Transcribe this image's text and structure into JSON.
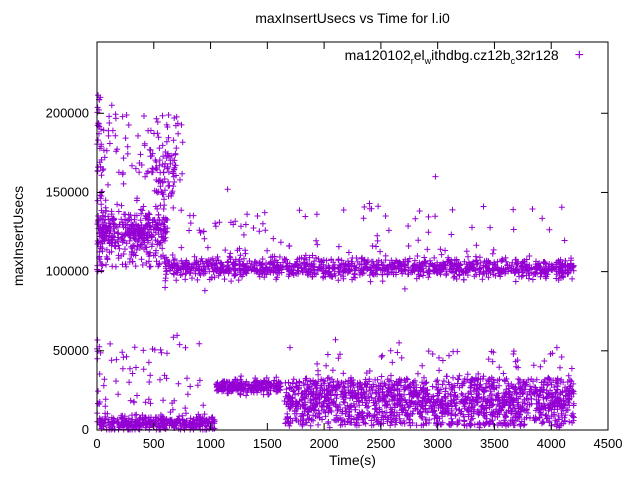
{
  "chart_data": {
    "type": "scatter",
    "title": "maxInsertUsecs vs Time for l.i0",
    "xlabel": "Time(s)",
    "ylabel": "maxInsertUsecs",
    "xlim": [
      0,
      4500
    ],
    "ylim": [
      0,
      245000
    ],
    "grid": false,
    "legend_position": "top-right-inside",
    "marker_style": "plus",
    "axes": {
      "x": {
        "min": 0,
        "max": 4500,
        "ticks": [
          0,
          500,
          1000,
          1500,
          2000,
          2500,
          3000,
          3500,
          4000,
          4500
        ]
      },
      "y": {
        "min": 0,
        "max": 245000,
        "ticks": [
          0,
          50000,
          100000,
          150000,
          200000
        ]
      }
    },
    "legend": {
      "marker_glyph": "+",
      "segments": [
        {
          "text": "ma120102",
          "sub": false
        },
        {
          "text": "r",
          "sub": true
        },
        {
          "text": "el",
          "sub": false
        },
        {
          "text": "w",
          "sub": true
        },
        {
          "text": "ithdbg.cz12b",
          "sub": false
        },
        {
          "text": "c",
          "sub": true
        },
        {
          "text": "32r128",
          "sub": false
        }
      ]
    },
    "series": [
      {
        "name": "ma120102relwithdbg.cz12bc32r128",
        "color": "#9400D3",
        "clusters": [
          {
            "name": "left-column-high",
            "t": [
              0,
              40
            ],
            "dist": "uniform",
            "y": [
              100000,
              212000
            ],
            "n": 45,
            "seed": 1
          },
          {
            "name": "early-upper-band",
            "t": [
              0,
              620
            ],
            "dist": "gauss",
            "mean": 126000,
            "sd": 5500,
            "n": 320,
            "seed": 2
          },
          {
            "name": "early-upper-low-scatter",
            "t": [
              0,
              620
            ],
            "dist": "uniform",
            "y": [
              103000,
              119000
            ],
            "n": 70,
            "seed": 3
          },
          {
            "name": "early-high-scatter",
            "t": [
              30,
              760
            ],
            "dist": "uniform",
            "y": [
              136000,
              200000
            ],
            "n": 110,
            "seed": 4
          },
          {
            "name": "mid-high-blob",
            "t": [
              480,
              700
            ],
            "dist": "uniform",
            "y": [
              145000,
              175000
            ],
            "n": 55,
            "seed": 5
          },
          {
            "name": "steady-upper-band",
            "t": [
              600,
              4200
            ],
            "dist": "gauss",
            "mean": 102500,
            "sd": 3200,
            "n": 1150,
            "seed": 6
          },
          {
            "name": "upper-spikes",
            "t": [
              620,
              4200
            ],
            "dist": "uniform",
            "y": [
              112000,
              142000
            ],
            "n": 80,
            "seed": 7
          },
          {
            "name": "early-lower-dense",
            "t": [
              0,
              1040
            ],
            "dist": "gauss",
            "mean": 4500,
            "sd": 2600,
            "clip": [
              300,
              13000
            ],
            "n": 380,
            "seed": 8
          },
          {
            "name": "early-lower-scatter",
            "t": [
              30,
              950
            ],
            "dist": "uniform",
            "y": [
              13000,
              60000
            ],
            "n": 55,
            "seed": 9
          },
          {
            "name": "left-edge-low-column",
            "t": [
              0,
              25
            ],
            "dist": "uniform",
            "y": [
              13000,
              60000
            ],
            "n": 10,
            "seed": 10
          },
          {
            "name": "mid-lower-band",
            "t": [
              1050,
              1620
            ],
            "dist": "gauss",
            "mean": 27500,
            "sd": 2200,
            "n": 260,
            "seed": 11
          },
          {
            "name": "late-lower-wide",
            "t": [
              1650,
              4200
            ],
            "dist": "uniform",
            "y": [
              2500,
              32500
            ],
            "n": 1050,
            "seed": 12
          },
          {
            "name": "late-lower-core",
            "t": [
              1650,
              4200
            ],
            "dist": "gauss",
            "mean": 19000,
            "sd": 6500,
            "clip": [
              1500,
              33000
            ],
            "n": 520,
            "seed": 13
          },
          {
            "name": "late-lower-scatter",
            "t": [
              1680,
              4200
            ],
            "dist": "uniform",
            "y": [
              33000,
              50000
            ],
            "n": 55,
            "seed": 14
          }
        ],
        "outliers": [
          [
            30,
            210000
          ],
          [
            130,
            205000
          ],
          [
            680,
            197000
          ],
          [
            600,
            90000
          ],
          [
            950,
            88000
          ],
          [
            1150,
            152000
          ],
          [
            2400,
            143000
          ],
          [
            2980,
            160000
          ],
          [
            2100,
            57000
          ],
          [
            2660,
            55000
          ],
          [
            3100,
            47000
          ],
          [
            4050,
            52000
          ],
          [
            1700,
            52000
          ]
        ]
      }
    ]
  }
}
